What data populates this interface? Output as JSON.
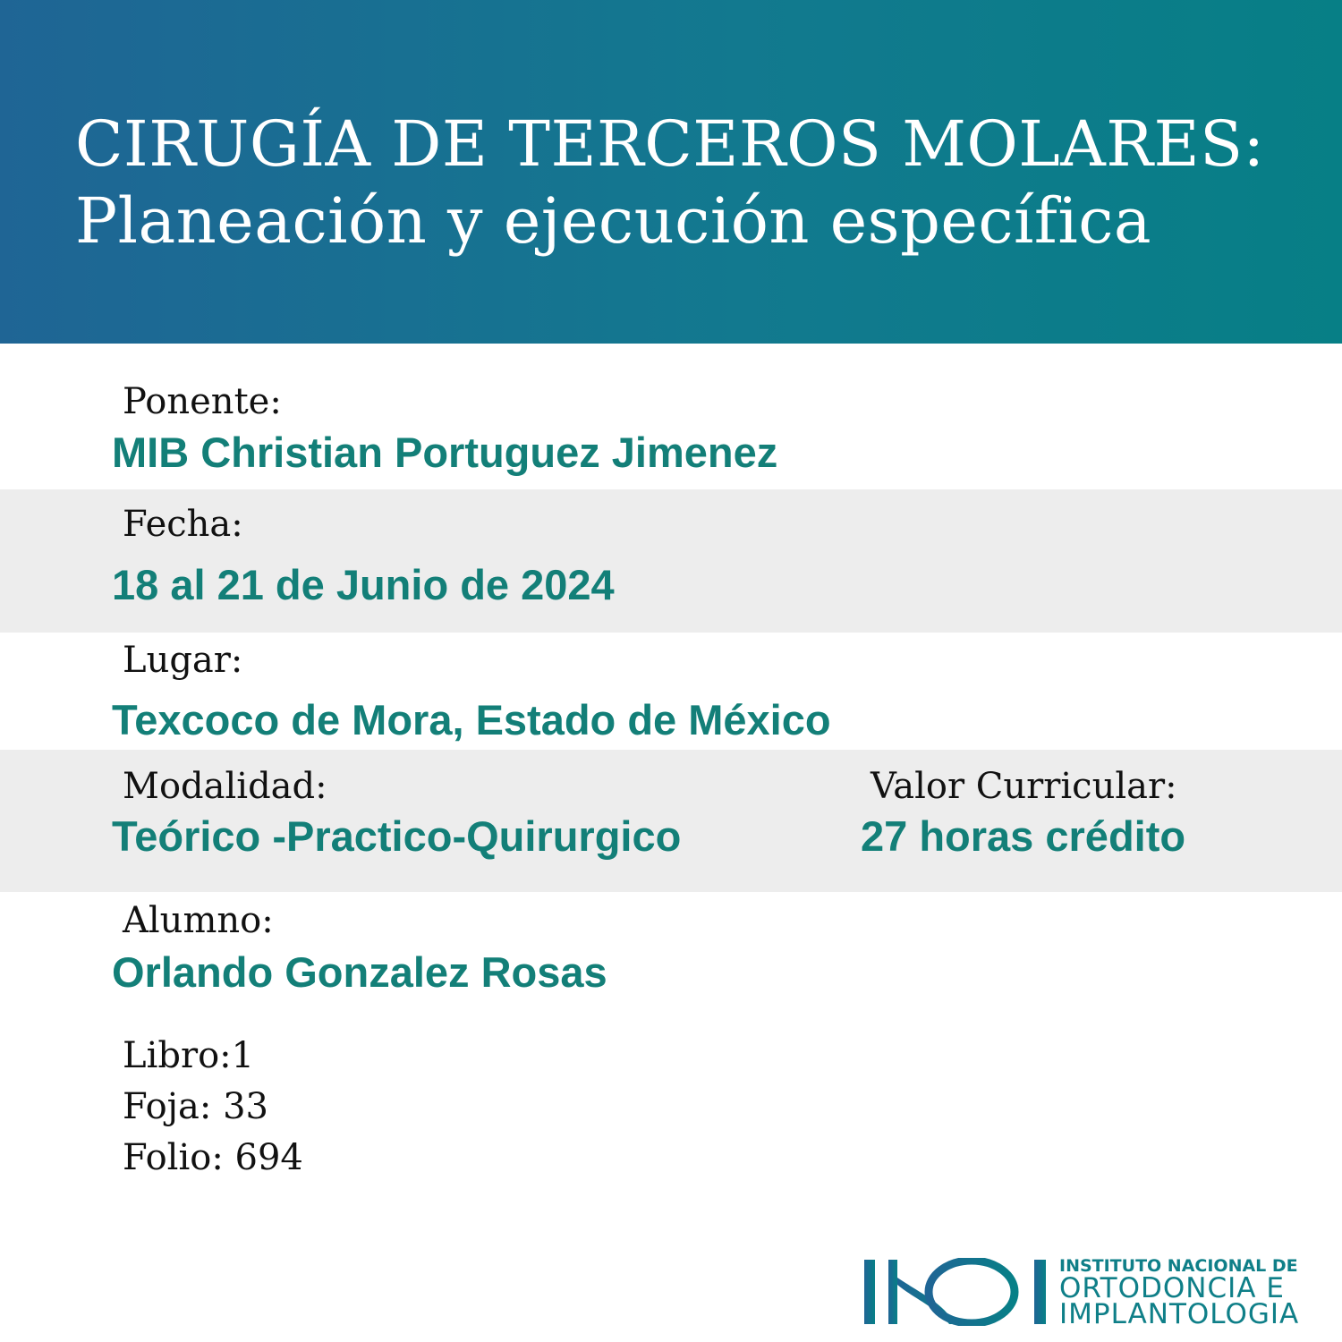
{
  "header": {
    "title_line1": "CIRUGÍA DE TERCEROS MOLARES:",
    "title_line2": "Planeación y ejecución específica"
  },
  "fields": {
    "ponente": {
      "label": "Ponente:",
      "value": "MIB Christian Portuguez Jimenez"
    },
    "fecha": {
      "label": "Fecha:",
      "value": "18 al 21 de Junio de 2024"
    },
    "lugar": {
      "label": "Lugar:",
      "value": "Texcoco de Mora, Estado de México"
    },
    "modalidad": {
      "label": "Modalidad:",
      "value": "Teórico -Practico-Quirurgico"
    },
    "valor": {
      "label": "Valor Curricular:",
      "value": "27 horas crédito"
    },
    "alumno": {
      "label": "Alumno:",
      "value": "Orlando Gonzalez Rosas"
    }
  },
  "registry": {
    "libro": "Libro:1",
    "foja": "Foja: 33",
    "folio": "Folio: 694"
  },
  "logo": {
    "mark": "INOI",
    "line1": "INSTITUTO NACIONAL DE",
    "line2": "ORTODONCIA E",
    "line3": "IMPLANTOLOGIA"
  },
  "colors": {
    "accent": "#137f78",
    "header_start": "#1f6595",
    "header_end": "#077f86",
    "band": "#ededed"
  }
}
